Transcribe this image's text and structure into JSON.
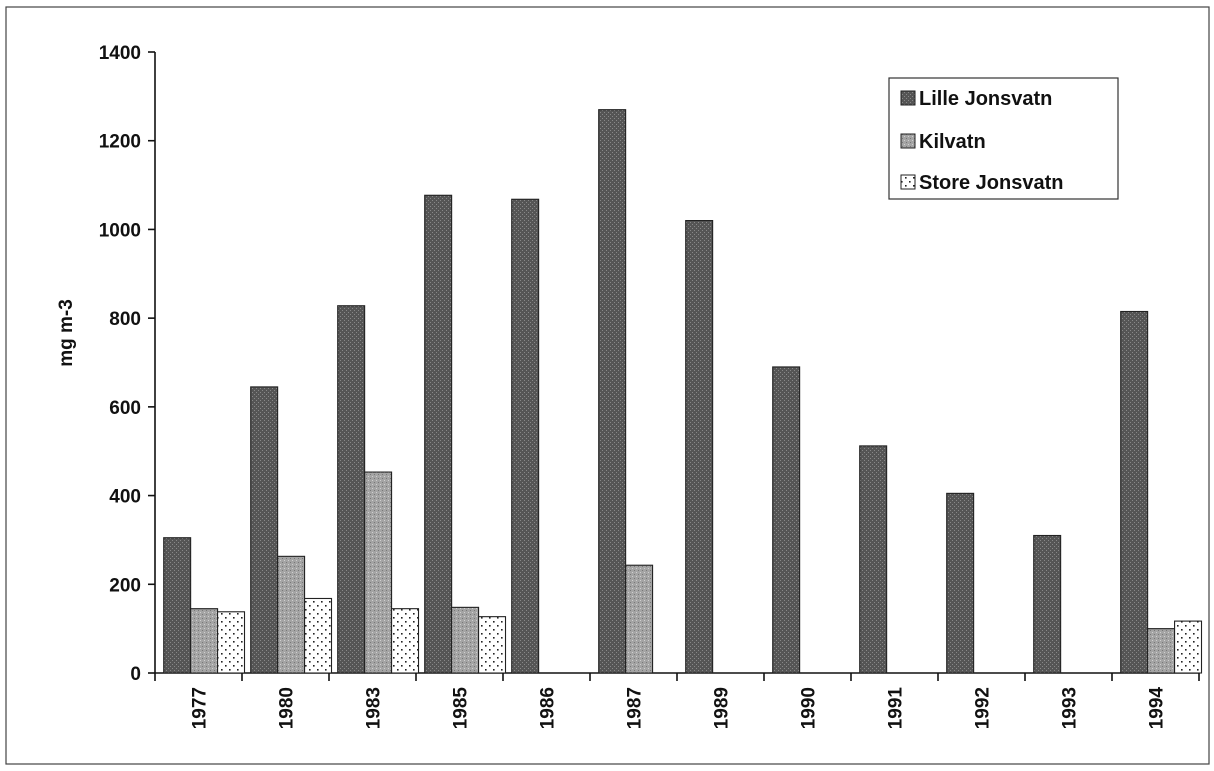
{
  "chart_data": {
    "type": "bar",
    "title": "",
    "xlabel": "",
    "ylabel": "mg m-3",
    "ylim": [
      0,
      1400
    ],
    "yticks": [
      "0",
      "200",
      "400",
      "600",
      "800",
      "1000",
      "1200",
      "1400"
    ],
    "grid": false,
    "legend_position": "top-right",
    "categories": [
      "1977",
      "1980",
      "1983",
      "1985",
      "1986",
      "1987",
      "1989",
      "1990",
      "1991",
      "1992",
      "1993",
      "1994"
    ],
    "series": [
      {
        "name": "Lille Jonsvatn",
        "color": "#5a5a5a",
        "values": [
          305,
          645,
          828,
          1077,
          1068,
          1270,
          1020,
          690,
          512,
          405,
          310,
          815
        ]
      },
      {
        "name": "Kilvatn",
        "color": "#a8a8a8",
        "values": [
          145,
          263,
          453,
          148,
          null,
          243,
          null,
          null,
          null,
          null,
          null,
          100
        ]
      },
      {
        "name": "Store Jonsvatn",
        "color": "#f2f2f2",
        "values": [
          138,
          168,
          145,
          127,
          null,
          null,
          null,
          null,
          null,
          null,
          null,
          117
        ]
      }
    ]
  }
}
